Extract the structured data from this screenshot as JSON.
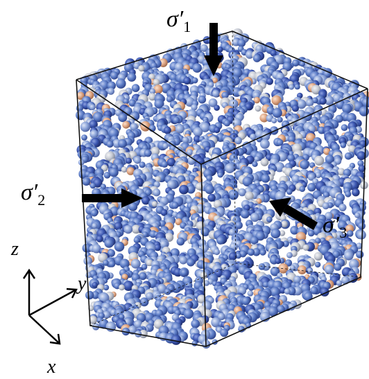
{
  "stresses": [
    {
      "symbol": "σ′",
      "index": "1"
    },
    {
      "symbol": "σ′",
      "index": "2"
    },
    {
      "symbol": "σ′",
      "index": "3"
    }
  ],
  "axes": [
    "z",
    "y",
    "x"
  ]
}
